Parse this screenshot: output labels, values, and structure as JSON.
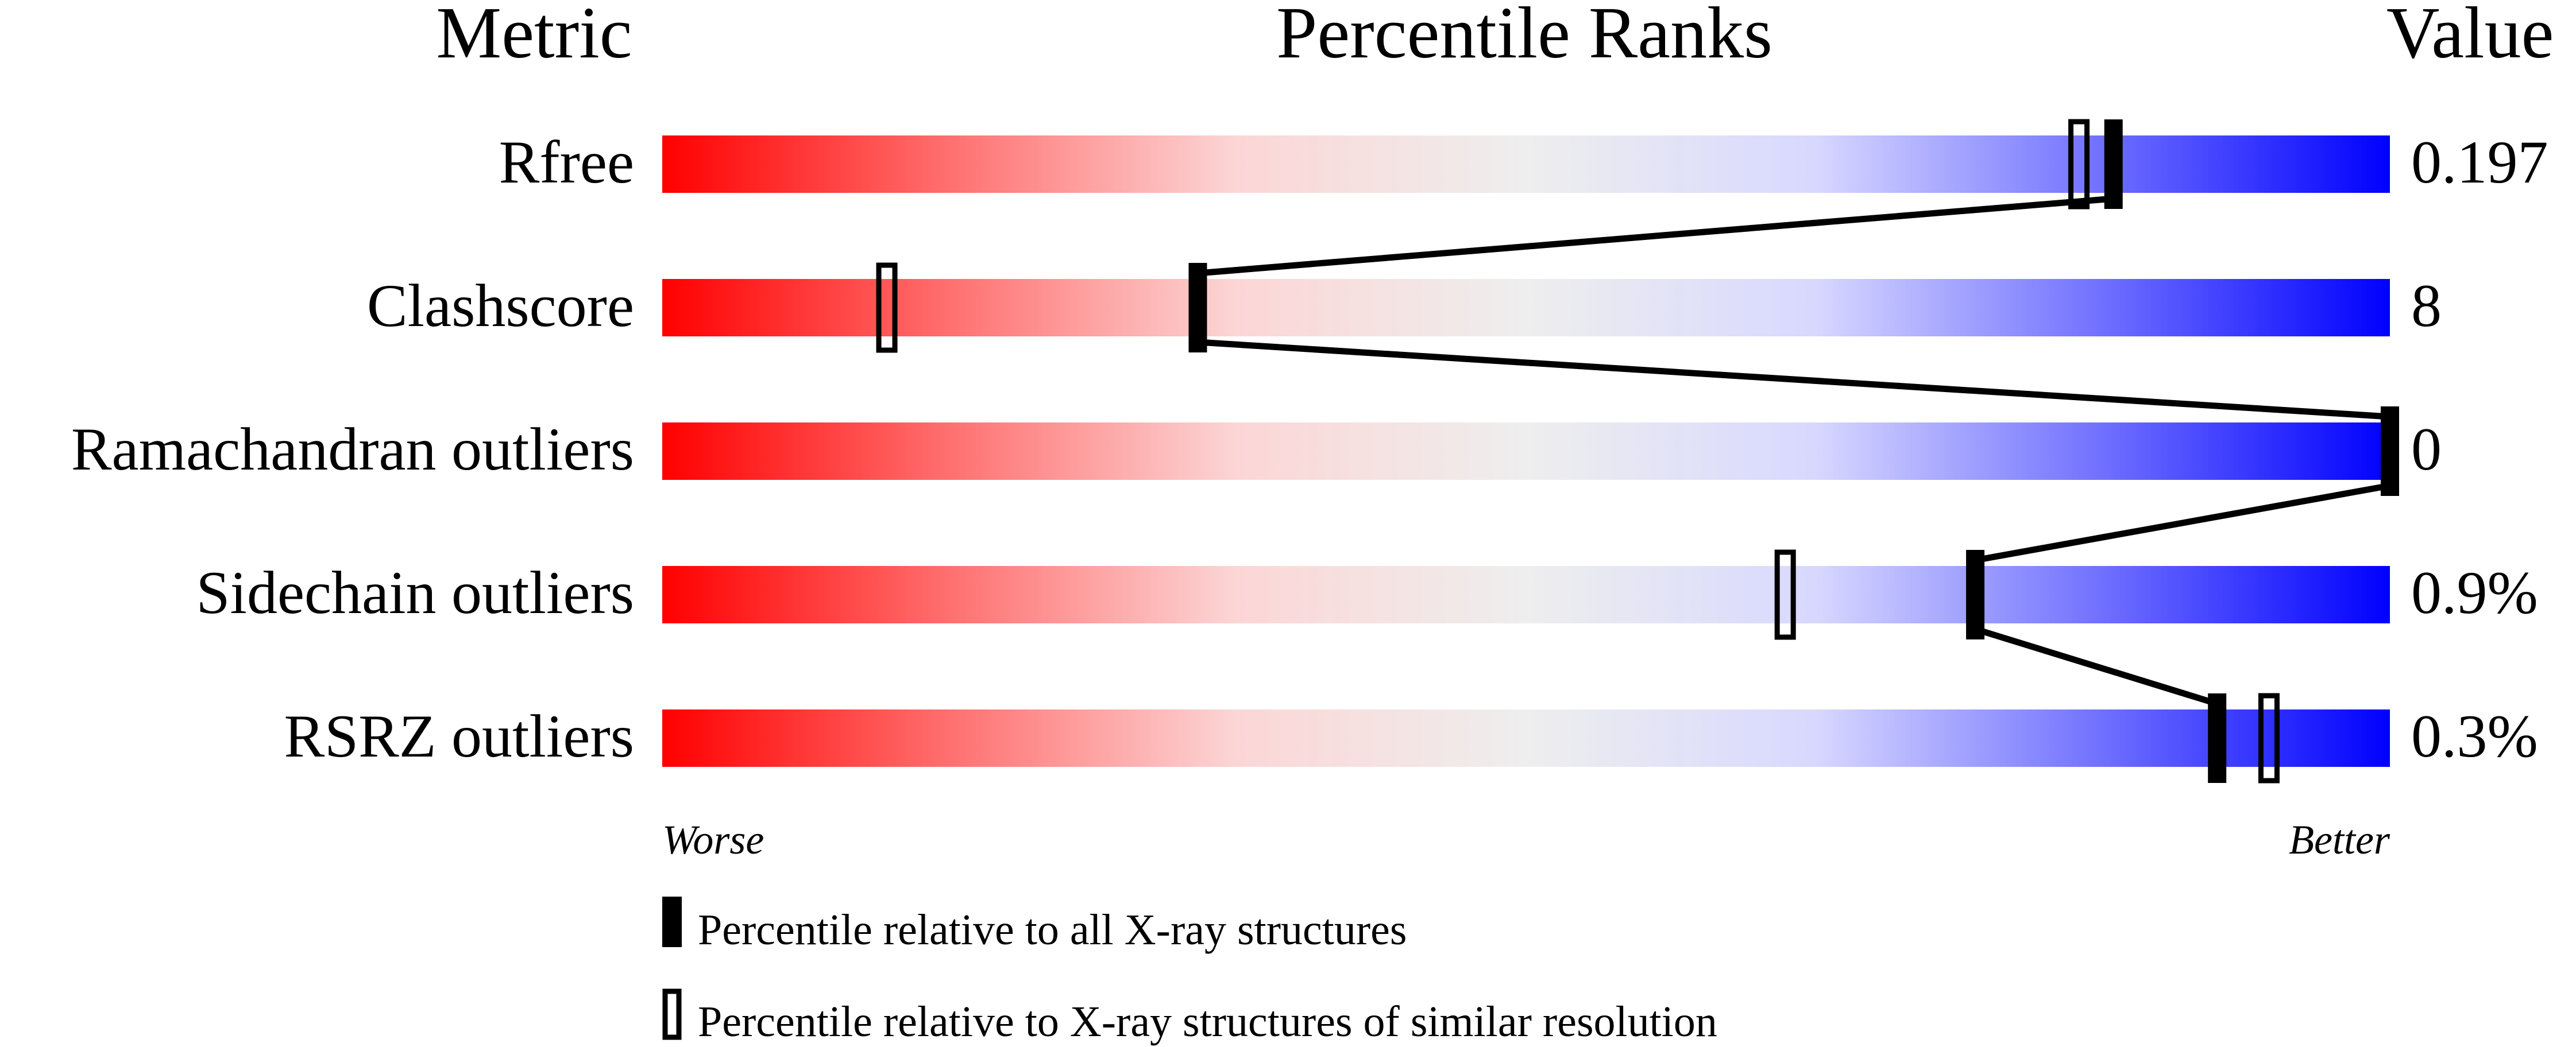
{
  "chart_data": {
    "type": "percentile-slider",
    "headers": {
      "metric": "Metric",
      "ranks": "Percentile Ranks",
      "value": "Value"
    },
    "xlim": [
      0,
      100
    ],
    "scale_labels": {
      "left": "Worse",
      "right": "Better"
    },
    "gradient_colors": [
      "#ff0000",
      "#ff7070",
      "#fcd6d6",
      "#eeeeee",
      "#d8d8ff",
      "#7070ff",
      "#0000ff"
    ],
    "metrics": [
      {
        "name": "Rfree",
        "value": "0.197",
        "percentile_all": 84,
        "percentile_similar": 82
      },
      {
        "name": "Clashscore",
        "value": "8",
        "percentile_all": 31,
        "percentile_similar": 13
      },
      {
        "name": "Ramachandran outliers",
        "value": "0",
        "percentile_all": 100,
        "percentile_similar": null
      },
      {
        "name": "Sidechain outliers",
        "value": "0.9%",
        "percentile_all": 76,
        "percentile_similar": 65
      },
      {
        "name": "RSRZ outliers",
        "value": "0.3%",
        "percentile_all": 90,
        "percentile_similar": 93
      }
    ],
    "legend": [
      {
        "marker": "filled",
        "label": "Percentile relative to all X-ray structures"
      },
      {
        "marker": "open",
        "label": "Percentile relative to X-ray structures of similar resolution"
      }
    ]
  }
}
